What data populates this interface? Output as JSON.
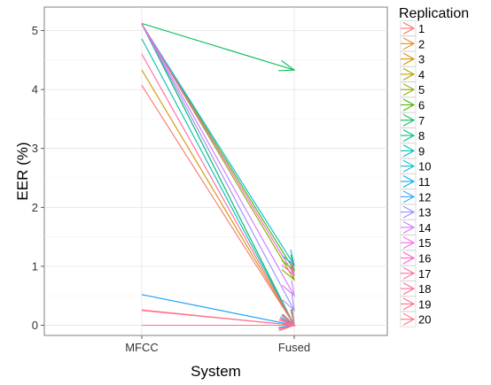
{
  "chart_data": {
    "type": "line",
    "title": "",
    "xlabel": "System",
    "ylabel": "EER (%)",
    "categories": [
      "MFCC",
      "Fused"
    ],
    "yticks": [
      0,
      1,
      2,
      3,
      4,
      5
    ],
    "ylim": [
      -0.2,
      5.35
    ],
    "grid": true,
    "legend": {
      "title": "Replication",
      "position": "right"
    },
    "series": [
      {
        "name": "1",
        "color": "#F8766D",
        "values": [
          4.07,
          0.0
        ]
      },
      {
        "name": "2",
        "color": "#E7851E",
        "values": [
          0.0,
          0.0
        ]
      },
      {
        "name": "3",
        "color": "#D09400",
        "values": [
          4.33,
          0.0
        ]
      },
      {
        "name": "4",
        "color": "#B2A100",
        "values": [
          5.11,
          0.0
        ]
      },
      {
        "name": "5",
        "color": "#89AC00",
        "values": [
          5.11,
          0.77
        ]
      },
      {
        "name": "6",
        "color": "#45B500",
        "values": [
          5.11,
          0.93
        ]
      },
      {
        "name": "7",
        "color": "#00BC51",
        "values": [
          5.12,
          4.33
        ]
      },
      {
        "name": "8",
        "color": "#00C087",
        "values": [
          5.11,
          0.0
        ]
      },
      {
        "name": "9",
        "color": "#00C0B2",
        "values": [
          4.86,
          0.0
        ]
      },
      {
        "name": "10",
        "color": "#00BCD6",
        "values": [
          5.11,
          1.02
        ]
      },
      {
        "name": "11",
        "color": "#00B3F2",
        "values": [
          0.52,
          0.0
        ]
      },
      {
        "name": "12",
        "color": "#29A3FF",
        "values": [
          0.52,
          0.0
        ]
      },
      {
        "name": "13",
        "color": "#9C8DFF",
        "values": [
          5.11,
          0.25
        ]
      },
      {
        "name": "14",
        "color": "#D277FF",
        "values": [
          5.11,
          0.5
        ]
      },
      {
        "name": "15",
        "color": "#F166E8",
        "values": [
          0.0,
          0.0
        ]
      },
      {
        "name": "16",
        "color": "#FF61C7",
        "values": [
          5.11,
          0.85
        ]
      },
      {
        "name": "17",
        "color": "#FF689E",
        "values": [
          4.6,
          0.0
        ]
      },
      {
        "name": "18",
        "color": "#FF6C91",
        "values": [
          0.25,
          0.0
        ]
      },
      {
        "name": "19",
        "color": "#FF6E89",
        "values": [
          0.26,
          0.0
        ]
      },
      {
        "name": "20",
        "color": "#FF7181",
        "values": [
          0.0,
          0.0
        ]
      }
    ]
  }
}
